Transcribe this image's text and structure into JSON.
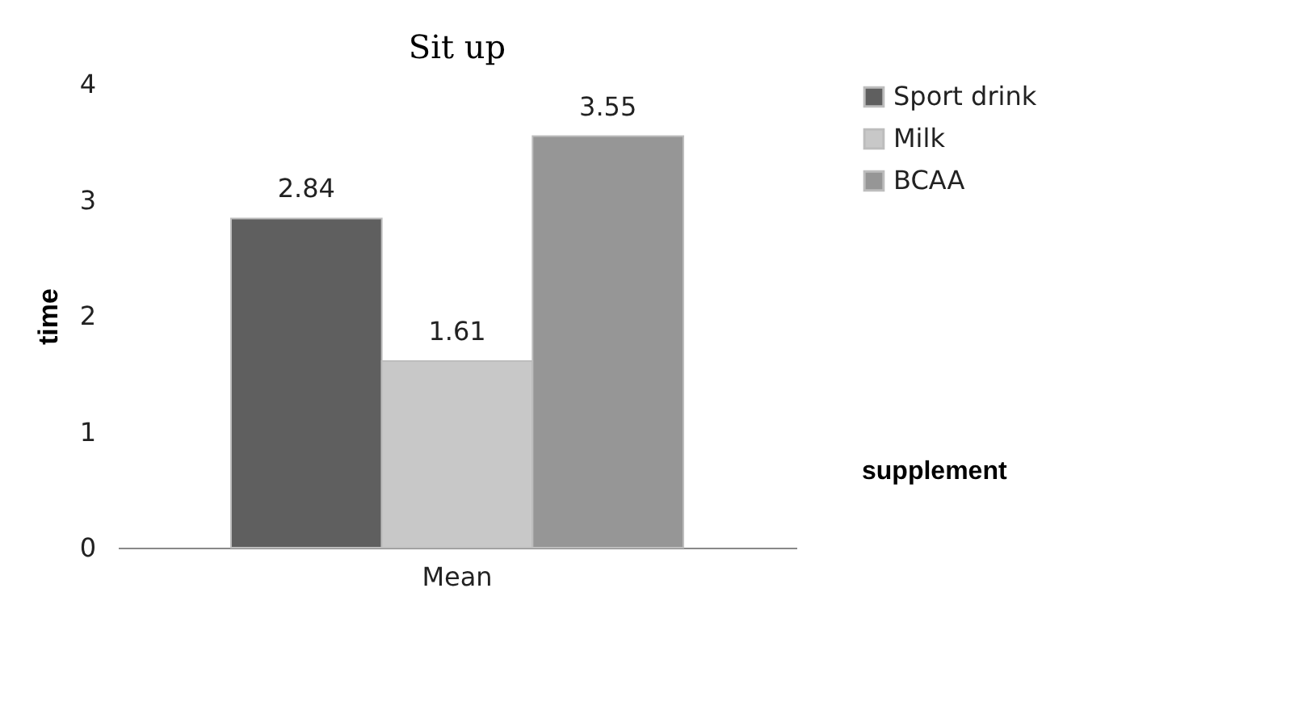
{
  "chart_data": {
    "type": "bar",
    "title": "Sit up",
    "xlabel": "supplement",
    "ylabel": "time",
    "categories": [
      "Mean"
    ],
    "series": [
      {
        "name": "Sport drink",
        "color": "#5f5f5f",
        "values": [
          2.84
        ]
      },
      {
        "name": "Milk",
        "color": "#c8c8c8",
        "values": [
          1.61
        ]
      },
      {
        "name": "BCAA",
        "color": "#969696",
        "values": [
          3.55
        ]
      }
    ],
    "ylim": [
      0,
      4
    ],
    "yticks": [
      0,
      1,
      2,
      3,
      4
    ],
    "grid": false,
    "legend": "right",
    "data_labels": true
  }
}
